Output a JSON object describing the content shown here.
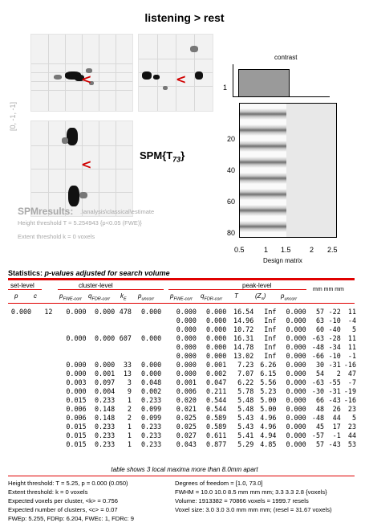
{
  "header": {
    "title": "listening > rest"
  },
  "glass_brain": {
    "coord_label": "[0, -1, -1]",
    "spm_label": "SPM{T",
    "spm_sub": "73",
    "spm_close": "}"
  },
  "design": {
    "contrast_label": "contrast",
    "contrast_tick": "1",
    "xlabel": "Design matrix",
    "yticks": [
      "20",
      "40",
      "60",
      "80"
    ],
    "xticks": [
      "0.5",
      "1",
      "1.5",
      "2",
      "2.5"
    ]
  },
  "spm_info": {
    "brand": "SPMresults:",
    "path": ".\\analysis\\classical\\estimate",
    "height_threshold": "Height threshold T = 5.254943  {p<0.05 (FWE)}",
    "extent_threshold": "Extent threshold k = 0 voxels"
  },
  "stats": {
    "label": "Statistics:",
    "subtitle": "p-values adjusted for search volume"
  },
  "table_headers": {
    "set_level": "set-level",
    "cluster_level": "cluster-level",
    "peak_level": "peak-level",
    "mm": "mm mm mm",
    "cols": [
      "p",
      "c",
      "p",
      "FWE-corr",
      "q",
      "FDR-corr",
      "k",
      "E",
      "p",
      "uncorr",
      "p",
      "FWE-corr",
      "q",
      "FDR-corr",
      "T",
      "(Z",
      "≡",
      ")",
      "p",
      "uncorr"
    ]
  },
  "rows": [
    [
      "0.000",
      "12",
      "0.000",
      "0.000",
      "478",
      "0.000",
      "0.000",
      "0.000",
      "16.54",
      "Inf",
      "0.000",
      "57",
      "-22",
      "11"
    ],
    [
      "",
      "",
      "",
      "",
      "",
      "",
      "0.000",
      "0.000",
      "14.96",
      "Inf",
      "0.000",
      "63",
      "-10",
      "-4"
    ],
    [
      "",
      "",
      "",
      "",
      "",
      "",
      "0.000",
      "0.000",
      "10.72",
      "Inf",
      "0.000",
      "60",
      "-40",
      "5"
    ],
    [
      "",
      "",
      "0.000",
      "0.000",
      "607",
      "0.000",
      "0.000",
      "0.000",
      "16.31",
      "Inf",
      "0.000",
      "-63",
      "-28",
      "11"
    ],
    [
      "",
      "",
      "",
      "",
      "",
      "",
      "0.000",
      "0.000",
      "14.78",
      "Inf",
      "0.000",
      "-48",
      "-34",
      "11"
    ],
    [
      "",
      "",
      "",
      "",
      "",
      "",
      "0.000",
      "0.000",
      "13.02",
      "Inf",
      "0.000",
      "-66",
      "-10",
      "-1"
    ],
    [
      "",
      "",
      "0.000",
      "0.000",
      "33",
      "0.000",
      "0.000",
      "0.001",
      "7.23",
      "6.26",
      "0.000",
      "30",
      "-31",
      "-16"
    ],
    [
      "",
      "",
      "0.000",
      "0.001",
      "13",
      "0.000",
      "0.000",
      "0.002",
      "7.07",
      "6.15",
      "0.000",
      "54",
      "2",
      "47"
    ],
    [
      "",
      "",
      "0.003",
      "0.097",
      "3",
      "0.048",
      "0.001",
      "0.047",
      "6.22",
      "5.56",
      "0.000",
      "-63",
      "-55",
      "-7"
    ],
    [
      "",
      "",
      "0.000",
      "0.004",
      "9",
      "0.002",
      "0.006",
      "0.211",
      "5.78",
      "5.23",
      "0.000",
      "-30",
      "-31",
      "-19"
    ],
    [
      "",
      "",
      "0.015",
      "0.233",
      "1",
      "0.233",
      "0.020",
      "0.544",
      "5.48",
      "5.00",
      "0.000",
      "66",
      "-43",
      "-16"
    ],
    [
      "",
      "",
      "0.006",
      "0.148",
      "2",
      "0.099",
      "0.021",
      "0.544",
      "5.48",
      "5.00",
      "0.000",
      "48",
      "26",
      "23"
    ],
    [
      "",
      "",
      "0.006",
      "0.148",
      "2",
      "0.099",
      "0.025",
      "0.589",
      "5.43",
      "4.96",
      "0.000",
      "-48",
      "44",
      "5"
    ],
    [
      "",
      "",
      "0.015",
      "0.233",
      "1",
      "0.233",
      "0.025",
      "0.589",
      "5.43",
      "4.96",
      "0.000",
      "45",
      "17",
      "23"
    ],
    [
      "",
      "",
      "0.015",
      "0.233",
      "1",
      "0.233",
      "0.027",
      "0.611",
      "5.41",
      "4.94",
      "0.000",
      "-57",
      "-1",
      "44"
    ],
    [
      "",
      "",
      "0.015",
      "0.233",
      "1",
      "0.233",
      "0.043",
      "0.877",
      "5.29",
      "4.85",
      "0.000",
      "57",
      "-43",
      "53"
    ]
  ],
  "footer": {
    "note": "table shows 3 local maxima more than 8.0mm apart",
    "left": [
      "Height threshold: T = 5.25, p = 0.000 (0.050)",
      "Extent threshold: k = 0 voxels",
      "Expected voxels per cluster, <k> = 0.756",
      "Expected number of clusters, <c> = 0.07",
      "FWEp: 5.255, FDRp: 6.204, FWEc: 1, FDRc: 9"
    ],
    "right": [
      "Degrees of freedom = [1.0, 73.0]",
      "FWHM = 10.0 10.0 8.5 mm mm mm; 3.3 3.3 2.8 {voxels}",
      "Volume: 1913382 = 70866 voxels = 1999.7 resels",
      "Voxel size: 3.0 3.0 3.0 mm mm mm; (resel = 31.67 voxels)"
    ]
  }
}
